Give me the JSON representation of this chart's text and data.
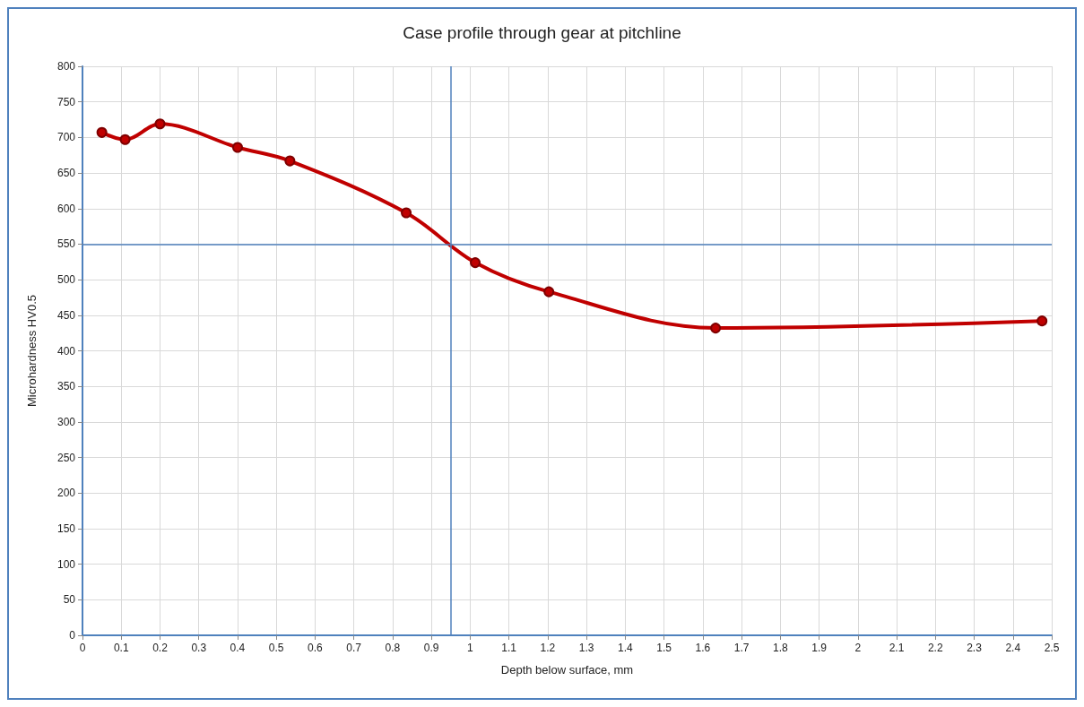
{
  "chart_data": {
    "type": "line",
    "title": "Case profile through gear at pitchline",
    "xlabel": "Depth below surface, mm",
    "ylabel": "Microhardness HV0.5",
    "x": [
      0.05,
      0.11,
      0.2,
      0.4,
      0.535,
      0.835,
      1.013,
      1.203,
      1.633,
      2.475
    ],
    "series": [
      {
        "color": "#c00000",
        "values": [
          707,
          697,
          719,
          686,
          667,
          594,
          524,
          483,
          432,
          442
        ]
      }
    ],
    "xlim": [
      0,
      2.5
    ],
    "xticks": [
      0,
      0.1,
      0.2,
      0.3,
      0.4,
      0.5,
      0.6,
      0.7,
      0.8,
      0.9,
      1,
      1.1,
      1.2,
      1.3,
      1.4,
      1.5,
      1.6,
      1.7,
      1.8,
      1.9,
      2,
      2.1,
      2.2,
      2.3,
      2.4,
      2.5
    ],
    "ylim": [
      0,
      800
    ],
    "yticks": [
      0,
      50,
      100,
      150,
      200,
      250,
      300,
      350,
      400,
      450,
      500,
      550,
      600,
      650,
      700,
      750,
      800
    ],
    "ref_lines": [
      {
        "axis": "y",
        "value": 550,
        "color": "#4f81bd"
      },
      {
        "axis": "x",
        "value": 0.95,
        "color": "#4f81bd"
      }
    ],
    "grid": true,
    "marker": "circle",
    "line_style": "solid"
  }
}
